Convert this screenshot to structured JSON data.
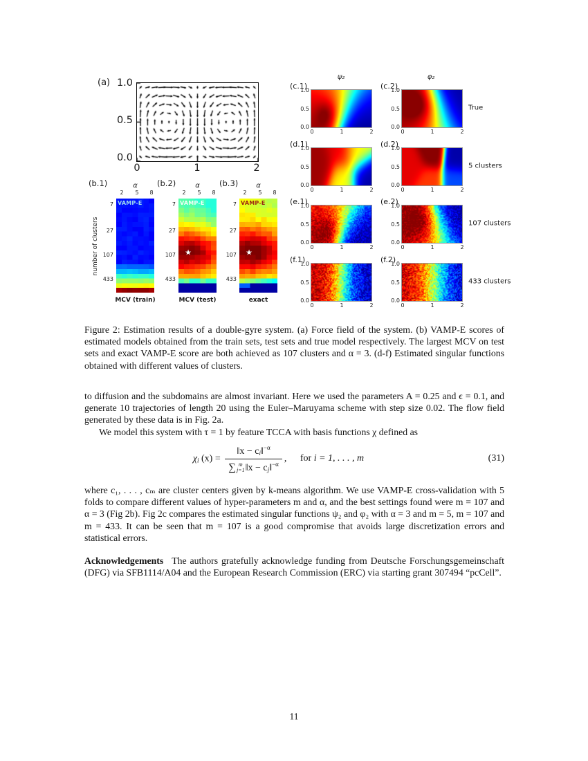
{
  "figure": {
    "quiver": {
      "label": "(a)",
      "yticks": [
        "1.0",
        "0.5",
        "0.0"
      ],
      "xticks": [
        "0",
        "1",
        "2"
      ]
    },
    "vampe": {
      "ylabel": "number of clusters",
      "yticks": [
        "7",
        "27",
        "107",
        "433"
      ],
      "xlabel": "α",
      "xticks": [
        "2",
        "5",
        "8"
      ],
      "panels": [
        {
          "label": "(b.1)",
          "inner": "VAMP-E",
          "inner_color": "#9fdcee",
          "caption": "MCV (train)",
          "star": false,
          "kind": "train"
        },
        {
          "label": "(b.2)",
          "inner": "VAMP-E",
          "inner_color": "#f4fdf6",
          "caption": "MCV (test)",
          "star": true,
          "kind": "test"
        },
        {
          "label": "(b.3)",
          "inner": "VAMP-E",
          "inner_color": "#9b2715",
          "caption": "exact",
          "star": true,
          "kind": "exact"
        }
      ],
      "star_symbol": "★"
    },
    "functions": {
      "col_headers": [
        "ψ₂",
        "φ₂"
      ],
      "row_captions": [
        "True",
        "5 clusters",
        "107 clusters",
        "433 clusters"
      ],
      "panel_labels": [
        [
          "(c.1)",
          "(c.2)"
        ],
        [
          "(d.1)",
          "(d.2)"
        ],
        [
          "(e.1)",
          "(e.2)"
        ],
        [
          "(f.1)",
          "(f.2)"
        ]
      ],
      "yticks": [
        "1.0",
        "0.5",
        "0.0"
      ],
      "xticks": [
        "0",
        "1",
        "2"
      ]
    },
    "caption": "Figure 2: Estimation results of a double-gyre system. (a) Force field of the system. (b) VAMP-E scores of estimated models obtained from the train sets, test sets and true model respectively. The largest MCV on test sets and exact VAMP-E score are both achieved as 107 clusters and α = 3. (d-f) Estimated singular functions obtained with different values of clusters."
  },
  "body": {
    "para1": "to diffusion and the subdomains are almost invariant. Here we used the parameters A = 0.25 and ϵ = 0.1, and generate 10 trajectories of length 20 using the Euler–Maruyama scheme with step size 0.02. The flow field generated by these data is in Fig. 2a.",
    "para2": "We model this system with τ = 1 by feature TCCA with basis functions χ defined as",
    "equation": {
      "chi": "χ",
      "chi_sub": "i",
      "arg": "(x) =",
      "num_open": "‖x − c",
      "num_sub": "i",
      "num_close": "‖",
      "power": "−α",
      "sum": "∑",
      "sum_top": "m",
      "sum_bottom": "j=1",
      "den_open": "‖x − c",
      "den_sub": "j",
      "den_close": "‖",
      "comma": ",",
      "cond_for": "for ",
      "cond_rest": "i = 1, . . . , m",
      "tag": "(31)"
    },
    "para3": "where c₁, . . . , cₘ are cluster centers given by k-means algorithm. We use VAMP-E cross-validation with 5 folds to compare different values of hyper-parameters m and α, and the best settings found were m = 107 and α = 3 (Fig 2b). Fig 2c compares the estimated singular functions ψ₂ and φ₂ with α = 3 and m = 5, m = 107 and m = 433. It can be seen that m = 107 is a good compromise that avoids large discretization errors and statistical errors.",
    "ack_title": "Acknowledgements",
    "ack_text": "The authors gratefully acknowledge funding from Deutsche Forschungsgemeinschaft (DFG) via SFB1114/A04 and the European Research Commission (ERC) via starting grant 307494 “pcCell”."
  },
  "page": {
    "number": "11"
  }
}
